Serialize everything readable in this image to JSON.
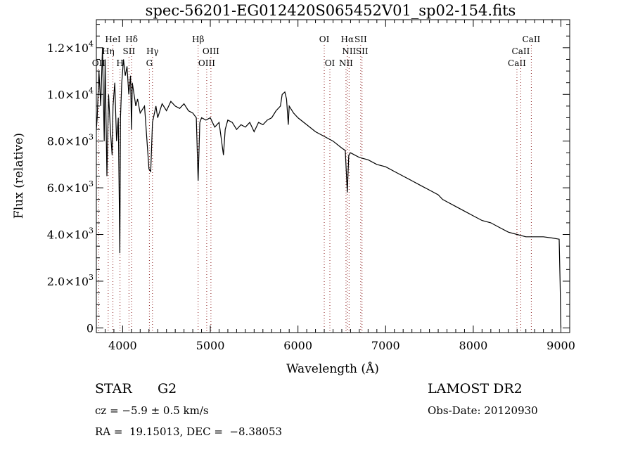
{
  "chart_data": {
    "type": "line",
    "title": "spec-56201-EG012420S065452V01_sp02-154.fits",
    "xlabel": "Wavelength (Å)",
    "ylabel": "Flux (relative)",
    "xlim": [
      3700,
      9100
    ],
    "ylim": [
      -200,
      13200
    ],
    "x_ticks": [
      4000,
      5000,
      6000,
      7000,
      8000,
      9000
    ],
    "x_tick_labels": [
      "4000",
      "5000",
      "6000",
      "7000",
      "8000",
      "9000"
    ],
    "y_ticks": [
      0,
      2000,
      4000,
      6000,
      8000,
      10000,
      12000
    ],
    "y_tick_labels": [
      {
        "mant": "0",
        "exp": ""
      },
      {
        "mant": "2.0×10",
        "exp": "3"
      },
      {
        "mant": "4.0×10",
        "exp": "3"
      },
      {
        "mant": "6.0×10",
        "exp": "3"
      },
      {
        "mant": "8.0×10",
        "exp": "3"
      },
      {
        "mant": "1.0×10",
        "exp": "4"
      },
      {
        "mant": "1.2×10",
        "exp": "4"
      }
    ],
    "grid": false,
    "series": [
      {
        "name": "spectrum",
        "x": [
          3700,
          3710,
          3730,
          3750,
          3770,
          3790,
          3800,
          3820,
          3840,
          3860,
          3880,
          3890,
          3910,
          3930,
          3950,
          3968,
          3975,
          3990,
          4010,
          4030,
          4050,
          4070,
          4090,
          4101,
          4110,
          4130,
          4150,
          4170,
          4200,
          4250,
          4300,
          4320,
          4340,
          4380,
          4400,
          4450,
          4500,
          4550,
          4600,
          4650,
          4700,
          4750,
          4800,
          4840,
          4861,
          4880,
          4900,
          4950,
          5000,
          5050,
          5100,
          5150,
          5170,
          5200,
          5250,
          5300,
          5350,
          5400,
          5450,
          5500,
          5550,
          5600,
          5650,
          5700,
          5750,
          5800,
          5820,
          5850,
          5870,
          5890,
          5900,
          5950,
          6000,
          6100,
          6200,
          6300,
          6400,
          6500,
          6540,
          6563,
          6580,
          6600,
          6700,
          6800,
          6900,
          7000,
          7100,
          7200,
          7300,
          7400,
          7500,
          7600,
          7650,
          7700,
          7800,
          7900,
          8000,
          8100,
          8200,
          8300,
          8400,
          8500,
          8600,
          8700,
          8800,
          8900,
          8980,
          8990,
          9000
        ],
        "y": [
          8500,
          9000,
          11000,
          9500,
          12000,
          8000,
          11500,
          6500,
          10000,
          8500,
          7400,
          9500,
          10500,
          8000,
          9000,
          3200,
          9000,
          10500,
          11500,
          10800,
          11200,
          10000,
          10800,
          8500,
          10500,
          10000,
          9500,
          9800,
          9200,
          9500,
          6800,
          6700,
          8800,
          9500,
          9000,
          9600,
          9300,
          9700,
          9500,
          9400,
          9600,
          9300,
          9200,
          9000,
          6300,
          8800,
          9000,
          8900,
          9000,
          8600,
          8800,
          7400,
          8500,
          8900,
          8800,
          8500,
          8700,
          8600,
          8800,
          8400,
          8800,
          8700,
          8900,
          9000,
          9300,
          9500,
          10000,
          10100,
          9800,
          8700,
          9500,
          9200,
          9000,
          8700,
          8400,
          8200,
          8000,
          7700,
          7600,
          5800,
          7400,
          7500,
          7300,
          7200,
          7000,
          6900,
          6700,
          6500,
          6300,
          6100,
          5900,
          5700,
          5500,
          5400,
          5200,
          5000,
          4800,
          4600,
          4500,
          4300,
          4100,
          4000,
          3900,
          3900,
          3900,
          3850,
          3800,
          2000,
          0
        ]
      }
    ],
    "line_markers": [
      {
        "label": "OII",
        "wave": 3727,
        "row": 3
      },
      {
        "label": "Hη",
        "wave": 3835,
        "row": 2
      },
      {
        "label": "HeI",
        "wave": 3889,
        "row": 1
      },
      {
        "label": "H",
        "wave": 3970,
        "row": 3
      },
      {
        "label": "SII",
        "wave": 4072,
        "row": 2
      },
      {
        "label": "Hδ",
        "wave": 4102,
        "row": 1
      },
      {
        "label": "G",
        "wave": 4305,
        "row": 3
      },
      {
        "label": "Hγ",
        "wave": 4340,
        "row": 2
      },
      {
        "label": "Hβ",
        "wave": 4861,
        "row": 1
      },
      {
        "label": "OIII",
        "wave": 4959,
        "row": 3
      },
      {
        "label": "OIII",
        "wave": 5007,
        "row": 2
      },
      {
        "label": "OI",
        "wave": 6300,
        "row": 1
      },
      {
        "label": "OI",
        "wave": 6364,
        "row": 3
      },
      {
        "label": "NII",
        "wave": 6548,
        "row": 3
      },
      {
        "label": "Hα",
        "wave": 6563,
        "row": 1
      },
      {
        "label": "NII",
        "wave": 6583,
        "row": 2
      },
      {
        "label": "SII",
        "wave": 6716,
        "row": 1
      },
      {
        "label": "SII",
        "wave": 6731,
        "row": 2
      },
      {
        "label": "CaII",
        "wave": 8498,
        "row": 3
      },
      {
        "label": "CaII",
        "wave": 8542,
        "row": 2
      },
      {
        "label": "CaII",
        "wave": 8662,
        "row": 1
      }
    ],
    "marker_color": "#8b1a1a"
  },
  "info": {
    "class": "STAR",
    "subclass": "G2",
    "cz": "cz = −5.9 ± 0.5 km/s",
    "coords": "RA =  19.15013, DEC =  −8.38053",
    "survey": "LAMOST DR2",
    "obs_date": "Obs-Date: 20120930"
  }
}
